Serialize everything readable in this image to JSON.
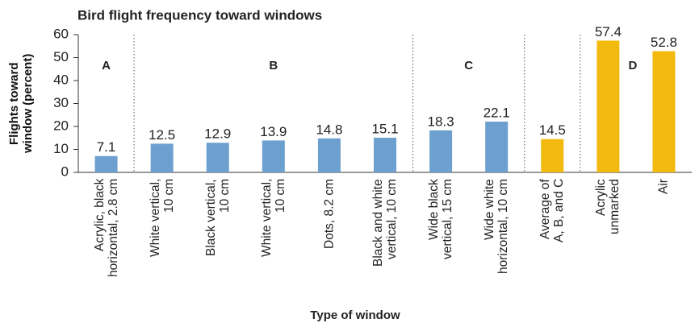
{
  "chart_data": {
    "type": "bar",
    "title": "Bird flight frequency toward windows",
    "x_label": "Type of window",
    "y_label": "Flights toward\nwindow (percent)",
    "categories": [
      "Acrylic, black\nhorizontal, 2.8 cm",
      "White vertical,\n10 cm",
      "Black vertical,\n10 cm",
      "White vertical,\n10 cm",
      "Dots, 8.2 cm",
      "Black and white\nvertical, 10 cm",
      "Wide black\nvertical, 15 cm",
      "Wide white\nhorizontal, 10 cm",
      "Average of\nA, B, and C",
      "Acrylic\nunmarked",
      "Air"
    ],
    "values": [
      7.1,
      12.5,
      12.9,
      13.9,
      14.8,
      15.1,
      18.3,
      22.1,
      14.5,
      57.4,
      52.8
    ],
    "colors": [
      "#6d9fcf",
      "#6d9fcf",
      "#6d9fcf",
      "#6d9fcf",
      "#6d9fcf",
      "#6d9fcf",
      "#6d9fcf",
      "#6d9fcf",
      "#f2b90f",
      "#f2b90f",
      "#f2b90f"
    ],
    "annotations": [
      "A",
      "B",
      "C",
      "D"
    ],
    "ylim": [
      0,
      60
    ],
    "yticks": [
      0,
      10,
      20,
      30,
      40,
      50,
      60
    ],
    "grid": false
  }
}
